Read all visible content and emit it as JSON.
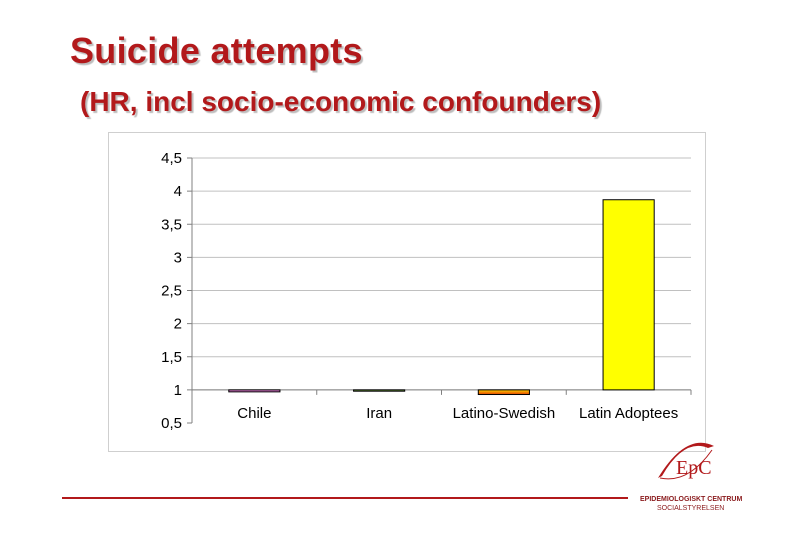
{
  "slide": {
    "title": "Suicide attempts",
    "subtitle": "(HR, incl socio-economic confounders)"
  },
  "logo": {
    "mark": "EpC",
    "org": "EPIDEMIOLOGISKT CENTRUM",
    "sub": "SOCIALSTYRELSEN"
  },
  "colors": {
    "accent": "#b2191b",
    "grid": "#c0c0c0"
  },
  "chart_data": {
    "type": "bar",
    "categories": [
      "Chile",
      "Iran",
      "Latino-Swedish",
      "Latin Adoptees"
    ],
    "values": [
      0.97,
      0.98,
      0.93,
      3.87
    ],
    "bar_colors": [
      "#e07ad0",
      "#8bc34a",
      "#f5a623",
      "#ffff00"
    ],
    "bar_gradients": [
      false,
      false,
      true,
      false
    ],
    "ylim": [
      0.5,
      4.5
    ],
    "yticks": [
      "0,5",
      "1",
      "1,5",
      "2",
      "2,5",
      "3",
      "3,5",
      "4",
      "4,5"
    ],
    "baseline": 1,
    "grid": true,
    "xlabel": "",
    "ylabel": ""
  }
}
